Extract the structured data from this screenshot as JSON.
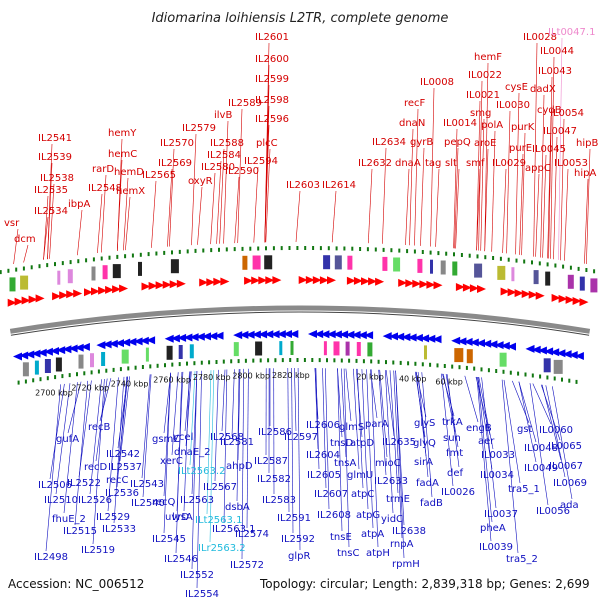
{
  "title": "Idiomarina loihiensis L2TR, complete genome",
  "footer": {
    "accession": "Accession: NC_006512",
    "topology": "Topology: circular; Length: 2,839,318 bp; Genes: 2,699"
  },
  "colors": {
    "forward_label": "#d40000",
    "reverse_label": "#1010c0",
    "forward_arrow": "#ff0000",
    "reverse_arrow": "#0000ee",
    "trna_label": "#22bbdd",
    "rrna_label": "#ee88cc",
    "backbone": "#8a8a8a",
    "marker": "#117711"
  },
  "kbp_ticks": [
    "2700 kbp",
    "2720 kbp",
    "2740 kbp",
    "2760 kbp",
    "2780 kbp",
    "2800 kbp",
    "2820 kbp",
    "20 kbp",
    "40 kbp",
    "60 kbp"
  ],
  "top_labels": [
    {
      "text": "IL2601",
      "c": "f"
    },
    {
      "text": "IL2600",
      "c": "f"
    },
    {
      "text": "IL2599",
      "c": "f"
    },
    {
      "text": "IL2598",
      "c": "f"
    },
    {
      "text": "IL2596",
      "c": "f"
    },
    {
      "text": "IL2589",
      "c": "f"
    },
    {
      "text": "ilvB",
      "c": "f"
    },
    {
      "text": "IL2588",
      "c": "f"
    },
    {
      "text": "IL2584",
      "c": "f"
    },
    {
      "text": "IL2580",
      "c": "f"
    },
    {
      "text": "plcC",
      "c": "f"
    },
    {
      "text": "IL2594",
      "c": "f"
    },
    {
      "text": "IL2590",
      "c": "f"
    },
    {
      "text": "IL2579",
      "c": "f"
    },
    {
      "text": "IL2570",
      "c": "f"
    },
    {
      "text": "IL2569",
      "c": "f"
    },
    {
      "text": "oxyR",
      "c": "f"
    },
    {
      "text": "IL2565",
      "c": "f"
    },
    {
      "text": "hemY",
      "c": "f"
    },
    {
      "text": "hemC",
      "c": "f"
    },
    {
      "text": "rarD",
      "c": "f"
    },
    {
      "text": "hemD",
      "c": "f"
    },
    {
      "text": "IL2548",
      "c": "f"
    },
    {
      "text": "hemX",
      "c": "f"
    },
    {
      "text": "IL2541",
      "c": "f"
    },
    {
      "text": "IL2539",
      "c": "f"
    },
    {
      "text": "IL2538",
      "c": "f"
    },
    {
      "text": "IL2535",
      "c": "f"
    },
    {
      "text": "ibpA",
      "c": "f"
    },
    {
      "text": "IL2534",
      "c": "f"
    },
    {
      "text": "vsr",
      "c": "f"
    },
    {
      "text": "dcm",
      "c": "f"
    },
    {
      "text": "IL2603",
      "c": "f"
    },
    {
      "text": "IL2614",
      "c": "f"
    },
    {
      "text": "IL2634",
      "c": "f"
    },
    {
      "text": "IL2632",
      "c": "f"
    },
    {
      "text": "recF",
      "c": "f"
    },
    {
      "text": "dnaN",
      "c": "f"
    },
    {
      "text": "gyrB",
      "c": "f"
    },
    {
      "text": "dnaA",
      "c": "f"
    },
    {
      "text": "IL0008",
      "c": "f"
    },
    {
      "text": "tag",
      "c": "f"
    },
    {
      "text": "slt",
      "c": "f"
    },
    {
      "text": "IL0014",
      "c": "f"
    },
    {
      "text": "pepQ",
      "c": "f"
    },
    {
      "text": "smf",
      "c": "f"
    },
    {
      "text": "IL0028",
      "c": "f"
    },
    {
      "text": "hemF",
      "c": "f"
    },
    {
      "text": "IL0022",
      "c": "f"
    },
    {
      "text": "IL0021",
      "c": "f"
    },
    {
      "text": "smg",
      "c": "f"
    },
    {
      "text": "IL0030",
      "c": "f"
    },
    {
      "text": "cysE",
      "c": "f"
    },
    {
      "text": "polA",
      "c": "f"
    },
    {
      "text": "aroE",
      "c": "f"
    },
    {
      "text": "IL0029",
      "c": "f"
    },
    {
      "text": "IL0044",
      "c": "f"
    },
    {
      "text": "IL0043",
      "c": "f"
    },
    {
      "text": "dadX",
      "c": "f"
    },
    {
      "text": "cydB",
      "c": "f"
    },
    {
      "text": "purK",
      "c": "f"
    },
    {
      "text": "purE",
      "c": "f"
    },
    {
      "text": "IL0047",
      "c": "f"
    },
    {
      "text": "IL0045",
      "c": "f"
    },
    {
      "text": "appC",
      "c": "f"
    },
    {
      "text": "IL0053",
      "c": "f"
    },
    {
      "text": "IL0054",
      "c": "f"
    },
    {
      "text": "hipB",
      "c": "f"
    },
    {
      "text": "hipA",
      "c": "f"
    },
    {
      "text": "ILt0047.1",
      "c": "r2"
    }
  ],
  "bottom_labels": [
    {
      "text": "IL2498",
      "c": "r"
    },
    {
      "text": "IL2506",
      "c": "r"
    },
    {
      "text": "gufA",
      "c": "r"
    },
    {
      "text": "IL2510",
      "c": "r"
    },
    {
      "text": "fhuE_2",
      "c": "r"
    },
    {
      "text": "IL2515",
      "c": "r"
    },
    {
      "text": "IL2519",
      "c": "r"
    },
    {
      "text": "recB",
      "c": "r"
    },
    {
      "text": "recD",
      "c": "r"
    },
    {
      "text": "IL2522",
      "c": "r"
    },
    {
      "text": "IL2526",
      "c": "r"
    },
    {
      "text": "IL2529",
      "c": "r"
    },
    {
      "text": "IL2533",
      "c": "r"
    },
    {
      "text": "IL2542",
      "c": "r"
    },
    {
      "text": "IL2537",
      "c": "r"
    },
    {
      "text": "recC",
      "c": "r"
    },
    {
      "text": "IL2536",
      "c": "r"
    },
    {
      "text": "IL2540",
      "c": "r"
    },
    {
      "text": "IL2543",
      "c": "r"
    },
    {
      "text": "xerC",
      "c": "r"
    },
    {
      "text": "gsmC",
      "c": "r"
    },
    {
      "text": "recQ",
      "c": "r"
    },
    {
      "text": "IL2545",
      "c": "r"
    },
    {
      "text": "IL2546",
      "c": "r"
    },
    {
      "text": "IL2552",
      "c": "r"
    },
    {
      "text": "IL2554",
      "c": "r"
    },
    {
      "text": "lysA",
      "c": "r"
    },
    {
      "text": "uvrD",
      "c": "r"
    },
    {
      "text": "ycel",
      "c": "r"
    },
    {
      "text": "dnaE_2",
      "c": "r"
    },
    {
      "text": "ILt2563.2",
      "c": "t"
    },
    {
      "text": "IL2563",
      "c": "r"
    },
    {
      "text": "ILt2563.1",
      "c": "t"
    },
    {
      "text": "ILr2563.2",
      "c": "t"
    },
    {
      "text": "IL2563.1",
      "c": "r"
    },
    {
      "text": "IL2568",
      "c": "r"
    },
    {
      "text": "IL2581",
      "c": "r"
    },
    {
      "text": "ahpD",
      "c": "r"
    },
    {
      "text": "IL2567",
      "c": "r"
    },
    {
      "text": "dsbA",
      "c": "r"
    },
    {
      "text": "IL2574",
      "c": "r"
    },
    {
      "text": "IL2572",
      "c": "r"
    },
    {
      "text": "IL2586",
      "c": "r"
    },
    {
      "text": "IL2587",
      "c": "r"
    },
    {
      "text": "IL2582",
      "c": "r"
    },
    {
      "text": "IL2583",
      "c": "r"
    },
    {
      "text": "IL2591",
      "c": "r"
    },
    {
      "text": "IL2592",
      "c": "r"
    },
    {
      "text": "glpR",
      "c": "r"
    },
    {
      "text": "IL2597",
      "c": "r"
    },
    {
      "text": "IL2606",
      "c": "r"
    },
    {
      "text": "IL2604",
      "c": "r"
    },
    {
      "text": "IL2605",
      "c": "r"
    },
    {
      "text": "IL2607",
      "c": "r"
    },
    {
      "text": "IL2608",
      "c": "r"
    },
    {
      "text": "tnsD",
      "c": "r"
    },
    {
      "text": "tnsA",
      "c": "r"
    },
    {
      "text": "tnsE",
      "c": "r"
    },
    {
      "text": "tnsC",
      "c": "r"
    },
    {
      "text": "glmS",
      "c": "r"
    },
    {
      "text": "atpD",
      "c": "r"
    },
    {
      "text": "glmU",
      "c": "r"
    },
    {
      "text": "atpC",
      "c": "r"
    },
    {
      "text": "atpG",
      "c": "r"
    },
    {
      "text": "atpA",
      "c": "r"
    },
    {
      "text": "atpH",
      "c": "r"
    },
    {
      "text": "parA",
      "c": "r"
    },
    {
      "text": "IL2635",
      "c": "r"
    },
    {
      "text": "mioC",
      "c": "r"
    },
    {
      "text": "IL2633",
      "c": "r"
    },
    {
      "text": "trmE",
      "c": "r"
    },
    {
      "text": "yidC",
      "c": "r"
    },
    {
      "text": "IL2638",
      "c": "r"
    },
    {
      "text": "rnpA",
      "c": "r"
    },
    {
      "text": "rpmH",
      "c": "r"
    },
    {
      "text": "glyS",
      "c": "r"
    },
    {
      "text": "glyQ",
      "c": "r"
    },
    {
      "text": "sirA",
      "c": "r"
    },
    {
      "text": "fadA",
      "c": "r"
    },
    {
      "text": "fadB",
      "c": "r"
    },
    {
      "text": "trkA",
      "c": "r"
    },
    {
      "text": "sun",
      "c": "r"
    },
    {
      "text": "fmt",
      "c": "r"
    },
    {
      "text": "def",
      "c": "r"
    },
    {
      "text": "engB",
      "c": "r"
    },
    {
      "text": "aer",
      "c": "r"
    },
    {
      "text": "IL0033",
      "c": "r"
    },
    {
      "text": "IL0034",
      "c": "r"
    },
    {
      "text": "IL0026",
      "c": "r"
    },
    {
      "text": "IL0037",
      "c": "r"
    },
    {
      "text": "pheA",
      "c": "r"
    },
    {
      "text": "IL0039",
      "c": "r"
    },
    {
      "text": "gst",
      "c": "r"
    },
    {
      "text": "IL0048",
      "c": "r"
    },
    {
      "text": "IL0049",
      "c": "r"
    },
    {
      "text": "tra5_1",
      "c": "r"
    },
    {
      "text": "IL0056",
      "c": "r"
    },
    {
      "text": "tra5_2",
      "c": "r"
    },
    {
      "text": "IL0060",
      "c": "r"
    },
    {
      "text": "IL0065",
      "c": "r"
    },
    {
      "text": "IL0067",
      "c": "r"
    },
    {
      "text": "IL0069",
      "c": "r"
    },
    {
      "text": "ada",
      "c": "r"
    }
  ]
}
